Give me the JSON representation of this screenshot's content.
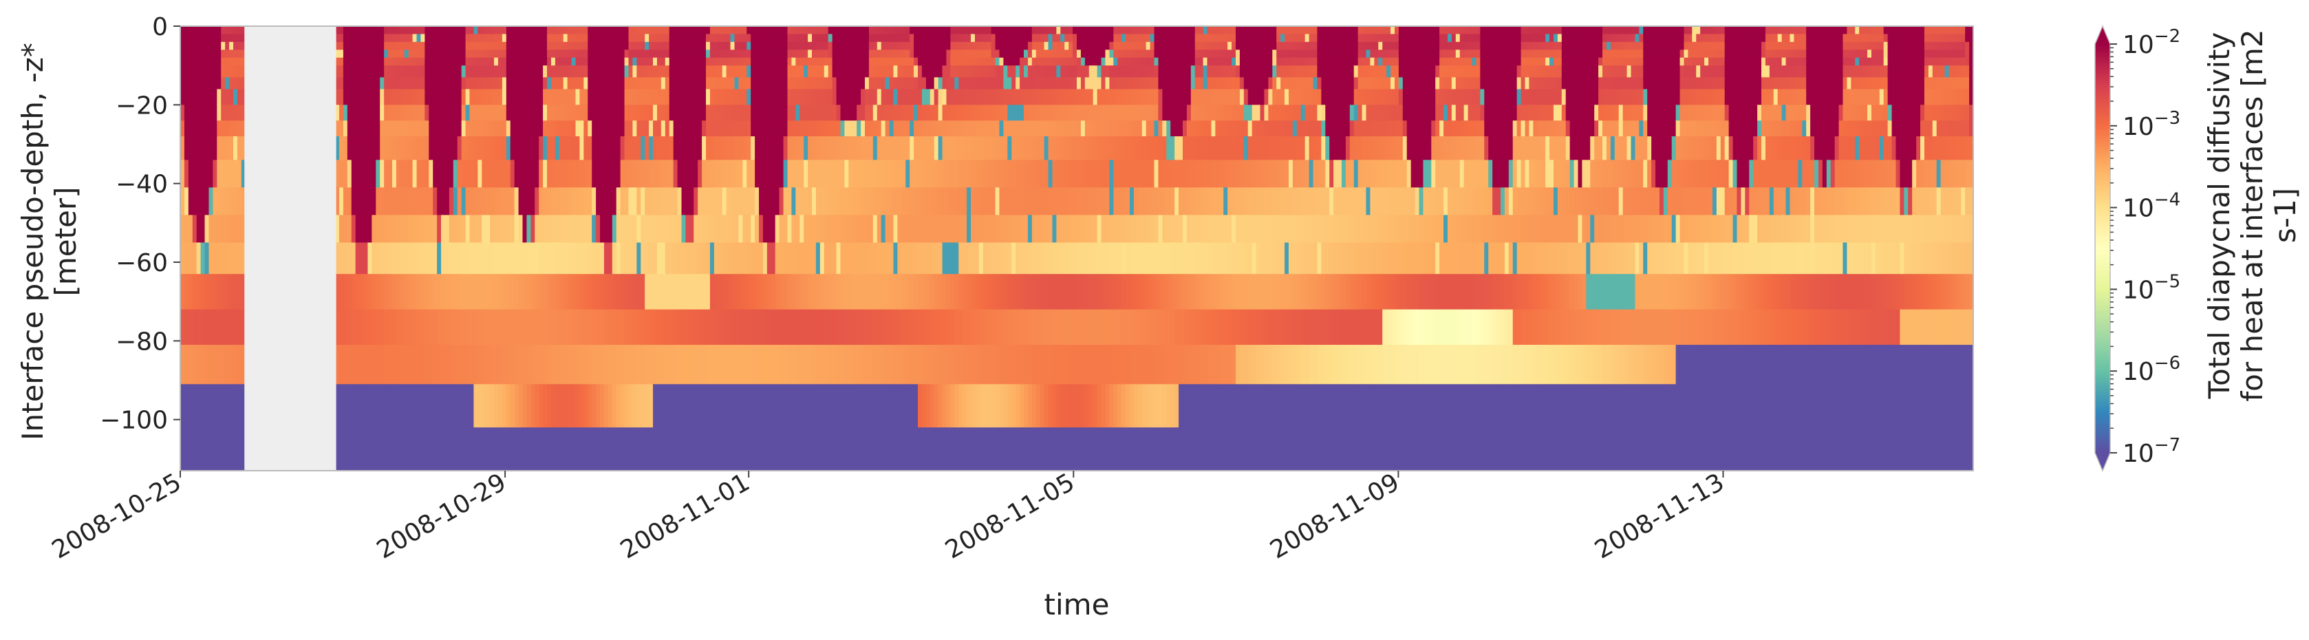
{
  "chart_data": {
    "type": "heatmap",
    "xlabel": "time",
    "ylabel": "Interface pseudo-depth, -z*\n[meter]",
    "x_ticks": [
      {
        "label": "2008-10-25",
        "day": 0
      },
      {
        "label": "2008-10-29",
        "day": 4
      },
      {
        "label": "2008-11-01",
        "day": 7
      },
      {
        "label": "2008-11-05",
        "day": 11
      },
      {
        "label": "2008-11-09",
        "day": 15
      },
      {
        "label": "2008-11-13",
        "day": 19
      }
    ],
    "xlim": [
      "2008-10-25",
      "2008-11-16 02:00"
    ],
    "y_ticks": [
      0,
      -20,
      -40,
      -60,
      -80,
      -100
    ],
    "ylim": [
      -113,
      0
    ],
    "missing_interval": [
      "2008-10-25 19:00",
      "2008-10-26 22:00"
    ],
    "colorbar": {
      "label": "Total diapycnal diffusivity\nfor heat at interfaces [m2\ns-1]",
      "scale": "log",
      "range": [
        1e-07,
        0.01
      ],
      "colormap": "Spectral_r",
      "ticks": [
        {
          "mantissa": "10",
          "exp": "−7"
        },
        {
          "mantissa": "10",
          "exp": "−6"
        },
        {
          "mantissa": "10",
          "exp": "−5"
        },
        {
          "mantissa": "10",
          "exp": "−4"
        },
        {
          "mantissa": "10",
          "exp": "−3"
        },
        {
          "mantissa": "10",
          "exp": "−2"
        }
      ]
    },
    "interfaces_m": [
      0,
      2,
      4,
      6,
      8,
      10,
      13,
      16,
      20,
      24,
      28,
      34,
      41,
      48,
      55,
      63,
      72,
      81,
      91,
      102,
      113
    ],
    "mixed_layer_depth_daily_max_m": [
      55,
      60,
      57,
      48,
      52,
      55,
      48,
      55,
      25,
      15,
      10,
      10,
      28,
      20,
      35,
      40,
      42,
      38,
      40,
      40,
      38,
      40
    ],
    "deep_layer_log10_kappa": {
      "63-72m": -3.4,
      "72-81m": -3.0,
      "81-91m": -3.2,
      "91-102m": -7,
      "102-113m": -7
    },
    "notes_text_values": {
      "background_value_below_91m": "1e-7 (constant, light green)",
      "surface_mixed_layer": "~1e-2 (dark red)"
    }
  },
  "style": {
    "missing_color": "#eeeeee",
    "axis_color": "#bbbbbb"
  }
}
